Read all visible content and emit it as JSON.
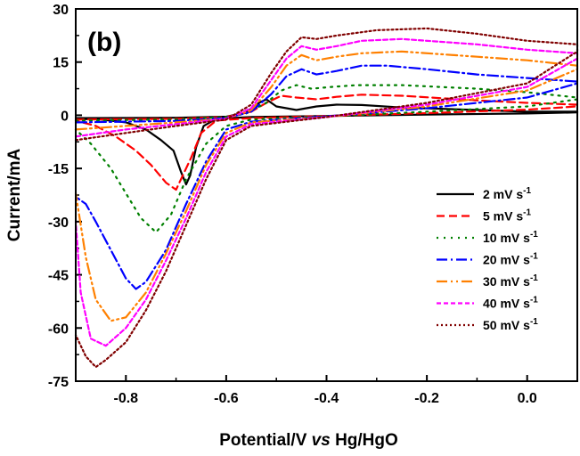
{
  "chart_data": {
    "type": "line",
    "panel_label": "(b)",
    "xlabel": {
      "prefix": "Potential/V ",
      "italic": "vs",
      "suffix": " Hg/HgO"
    },
    "ylabel": "Current/mA",
    "xlim": [
      -0.9,
      0.1
    ],
    "ylim": [
      -75,
      30
    ],
    "xticks": [
      -0.8,
      -0.6,
      -0.4,
      -0.2,
      0.0
    ],
    "xtick_labels": [
      "-0.8",
      "-0.6",
      "-0.4",
      "-0.2",
      "0.0"
    ],
    "yticks": [
      30,
      15,
      0,
      -15,
      -30,
      -45,
      -60,
      -75
    ],
    "ytick_labels": [
      "30",
      "15",
      "0",
      "-15",
      "-30",
      "-45",
      "-60",
      "-75"
    ],
    "grid": false,
    "legend_position": "right",
    "series": [
      {
        "name": "2 mV s",
        "sup": "-1",
        "color": "#000000",
        "dash": "",
        "anodic": [
          [
            -0.9,
            -0.8
          ],
          [
            -0.7,
            -0.7
          ],
          [
            -0.6,
            -0.4
          ],
          [
            -0.56,
            0.8
          ],
          [
            -0.535,
            3.5
          ],
          [
            -0.52,
            4.5
          ],
          [
            -0.5,
            2.5
          ],
          [
            -0.46,
            1.5
          ],
          [
            -0.42,
            2.5
          ],
          [
            -0.38,
            3
          ],
          [
            -0.33,
            2.9
          ],
          [
            -0.25,
            2.2
          ],
          [
            -0.1,
            1.5
          ],
          [
            0.0,
            1.0
          ],
          [
            0.1,
            1.0
          ]
        ],
        "cathodic": [
          [
            0.1,
            0.8
          ],
          [
            0.0,
            0.5
          ],
          [
            -0.2,
            0.2
          ],
          [
            -0.4,
            -0.2
          ],
          [
            -0.55,
            -0.5
          ],
          [
            -0.62,
            -1
          ],
          [
            -0.645,
            -3
          ],
          [
            -0.66,
            -9
          ],
          [
            -0.672,
            -17
          ],
          [
            -0.68,
            -19.5
          ],
          [
            -0.69,
            -16
          ],
          [
            -0.705,
            -10
          ],
          [
            -0.73,
            -7
          ],
          [
            -0.76,
            -4
          ],
          [
            -0.8,
            -2
          ],
          [
            -0.85,
            -1.2
          ],
          [
            -0.9,
            -1
          ]
        ]
      },
      {
        "name": "5 mV s",
        "sup": "-1",
        "color": "#ff0000",
        "dash": "9,5",
        "anodic": [
          [
            -0.9,
            -1.2
          ],
          [
            -0.7,
            -1.0
          ],
          [
            -0.6,
            -0.5
          ],
          [
            -0.55,
            1.0
          ],
          [
            -0.52,
            3.5
          ],
          [
            -0.49,
            5.5
          ],
          [
            -0.46,
            5
          ],
          [
            -0.42,
            4.5
          ],
          [
            -0.38,
            5.2
          ],
          [
            -0.33,
            5.8
          ],
          [
            -0.25,
            5.5
          ],
          [
            -0.1,
            4.2
          ],
          [
            0.0,
            3.5
          ],
          [
            0.1,
            3.0
          ]
        ],
        "cathodic": [
          [
            0.1,
            2.5
          ],
          [
            0.0,
            1.6
          ],
          [
            -0.2,
            0.6
          ],
          [
            -0.4,
            -0.2
          ],
          [
            -0.55,
            -0.8
          ],
          [
            -0.62,
            -1.5
          ],
          [
            -0.65,
            -5
          ],
          [
            -0.67,
            -12
          ],
          [
            -0.69,
            -18
          ],
          [
            -0.7,
            -21
          ],
          [
            -0.72,
            -19
          ],
          [
            -0.75,
            -14
          ],
          [
            -0.78,
            -10
          ],
          [
            -0.82,
            -6
          ],
          [
            -0.86,
            -3
          ],
          [
            -0.9,
            -1.5
          ]
        ]
      },
      {
        "name": "10 mV s",
        "sup": "-1",
        "color": "#008000",
        "dash": "2,6",
        "anodic": [
          [
            -0.9,
            -1.5
          ],
          [
            -0.7,
            -1.2
          ],
          [
            -0.6,
            -0.5
          ],
          [
            -0.56,
            0.5
          ],
          [
            -0.52,
            3.5
          ],
          [
            -0.49,
            7
          ],
          [
            -0.46,
            8.5
          ],
          [
            -0.43,
            7.5
          ],
          [
            -0.39,
            8
          ],
          [
            -0.34,
            8.5
          ],
          [
            -0.25,
            8.5
          ],
          [
            -0.1,
            7.5
          ],
          [
            0.0,
            6.5
          ],
          [
            0.1,
            5.0
          ]
        ],
        "cathodic": [
          [
            0.1,
            4.5
          ],
          [
            0.0,
            2.5
          ],
          [
            -0.2,
            1.0
          ],
          [
            -0.4,
            -0.3
          ],
          [
            -0.55,
            -1.2
          ],
          [
            -0.6,
            -3
          ],
          [
            -0.64,
            -8
          ],
          [
            -0.68,
            -18
          ],
          [
            -0.71,
            -28
          ],
          [
            -0.74,
            -33
          ],
          [
            -0.77,
            -29
          ],
          [
            -0.8,
            -22
          ],
          [
            -0.83,
            -15
          ],
          [
            -0.87,
            -8
          ],
          [
            -0.9,
            -4
          ]
        ]
      },
      {
        "name": "20 mV s",
        "sup": "-1",
        "color": "#0000ff",
        "dash": "12,4,2,4",
        "anodic": [
          [
            -0.9,
            -2
          ],
          [
            -0.7,
            -1.6
          ],
          [
            -0.6,
            -0.8
          ],
          [
            -0.55,
            1
          ],
          [
            -0.51,
            6
          ],
          [
            -0.48,
            11
          ],
          [
            -0.45,
            13
          ],
          [
            -0.42,
            11.5
          ],
          [
            -0.38,
            12.5
          ],
          [
            -0.33,
            14
          ],
          [
            -0.28,
            14
          ],
          [
            -0.2,
            13
          ],
          [
            -0.1,
            11.5
          ],
          [
            0.0,
            10.5
          ],
          [
            0.1,
            9.5
          ]
        ],
        "cathodic": [
          [
            0.1,
            9
          ],
          [
            0.0,
            5
          ],
          [
            -0.2,
            2
          ],
          [
            -0.4,
            -0.3
          ],
          [
            -0.55,
            -1.8
          ],
          [
            -0.6,
            -4
          ],
          [
            -0.64,
            -13
          ],
          [
            -0.68,
            -25
          ],
          [
            -0.72,
            -38
          ],
          [
            -0.76,
            -47
          ],
          [
            -0.78,
            -49
          ],
          [
            -0.8,
            -46
          ],
          [
            -0.83,
            -38
          ],
          [
            -0.86,
            -30
          ],
          [
            -0.88,
            -25
          ],
          [
            -0.9,
            -23
          ]
        ]
      },
      {
        "name": "30 mV s",
        "sup": "-1",
        "color": "#ff8000",
        "dash": "12,4,2,4,2,4",
        "anodic": [
          [
            -0.9,
            -4
          ],
          [
            -0.8,
            -3
          ],
          [
            -0.7,
            -2
          ],
          [
            -0.6,
            -1
          ],
          [
            -0.55,
            1.5
          ],
          [
            -0.51,
            8
          ],
          [
            -0.48,
            14
          ],
          [
            -0.45,
            17
          ],
          [
            -0.42,
            15.5
          ],
          [
            -0.38,
            16.5
          ],
          [
            -0.33,
            17.5
          ],
          [
            -0.25,
            18
          ],
          [
            -0.1,
            16.5
          ],
          [
            0.0,
            15.5
          ],
          [
            0.1,
            14
          ]
        ],
        "cathodic": [
          [
            0.1,
            13
          ],
          [
            0.0,
            7
          ],
          [
            -0.2,
            2.5
          ],
          [
            -0.4,
            -0.5
          ],
          [
            -0.55,
            -2
          ],
          [
            -0.6,
            -5
          ],
          [
            -0.64,
            -14
          ],
          [
            -0.68,
            -27
          ],
          [
            -0.72,
            -39
          ],
          [
            -0.76,
            -50
          ],
          [
            -0.8,
            -57
          ],
          [
            -0.83,
            -58
          ],
          [
            -0.86,
            -52
          ],
          [
            -0.88,
            -40
          ],
          [
            -0.9,
            -22
          ]
        ]
      },
      {
        "name": "40 mV s",
        "sup": "-1",
        "color": "#ff00ff",
        "dash": "5,3",
        "anodic": [
          [
            -0.9,
            -6
          ],
          [
            -0.8,
            -4
          ],
          [
            -0.7,
            -2.5
          ],
          [
            -0.6,
            -1
          ],
          [
            -0.55,
            2
          ],
          [
            -0.51,
            10
          ],
          [
            -0.48,
            16
          ],
          [
            -0.45,
            19.5
          ],
          [
            -0.42,
            18.5
          ],
          [
            -0.38,
            19.5
          ],
          [
            -0.33,
            21
          ],
          [
            -0.25,
            21.5
          ],
          [
            -0.1,
            20
          ],
          [
            0.0,
            18.5
          ],
          [
            0.1,
            17.5
          ]
        ],
        "cathodic": [
          [
            0.1,
            16
          ],
          [
            0.0,
            8
          ],
          [
            -0.2,
            3
          ],
          [
            -0.4,
            -0.5
          ],
          [
            -0.55,
            -2.5
          ],
          [
            -0.6,
            -6
          ],
          [
            -0.64,
            -16
          ],
          [
            -0.68,
            -29
          ],
          [
            -0.72,
            -41
          ],
          [
            -0.76,
            -52
          ],
          [
            -0.8,
            -60
          ],
          [
            -0.84,
            -65
          ],
          [
            -0.87,
            -63
          ],
          [
            -0.89,
            -50
          ],
          [
            -0.9,
            -30
          ]
        ]
      },
      {
        "name": "50 mV s",
        "sup": "-1",
        "color": "#800000",
        "dash": "2,3",
        "anodic": [
          [
            -0.9,
            -7
          ],
          [
            -0.8,
            -5
          ],
          [
            -0.7,
            -3
          ],
          [
            -0.6,
            -1.2
          ],
          [
            -0.55,
            3
          ],
          [
            -0.51,
            12
          ],
          [
            -0.48,
            18
          ],
          [
            -0.45,
            22
          ],
          [
            -0.42,
            21.5
          ],
          [
            -0.38,
            22.5
          ],
          [
            -0.3,
            24
          ],
          [
            -0.2,
            24.5
          ],
          [
            -0.1,
            23
          ],
          [
            0.0,
            21
          ],
          [
            0.1,
            20
          ]
        ],
        "cathodic": [
          [
            0.1,
            18
          ],
          [
            0.0,
            9
          ],
          [
            -0.2,
            3.5
          ],
          [
            -0.4,
            -0.5
          ],
          [
            -0.55,
            -3
          ],
          [
            -0.6,
            -7
          ],
          [
            -0.64,
            -18
          ],
          [
            -0.68,
            -31
          ],
          [
            -0.72,
            -44
          ],
          [
            -0.76,
            -55
          ],
          [
            -0.8,
            -64
          ],
          [
            -0.84,
            -69
          ],
          [
            -0.86,
            -71
          ],
          [
            -0.88,
            -68
          ],
          [
            -0.9,
            -62
          ]
        ]
      }
    ]
  }
}
